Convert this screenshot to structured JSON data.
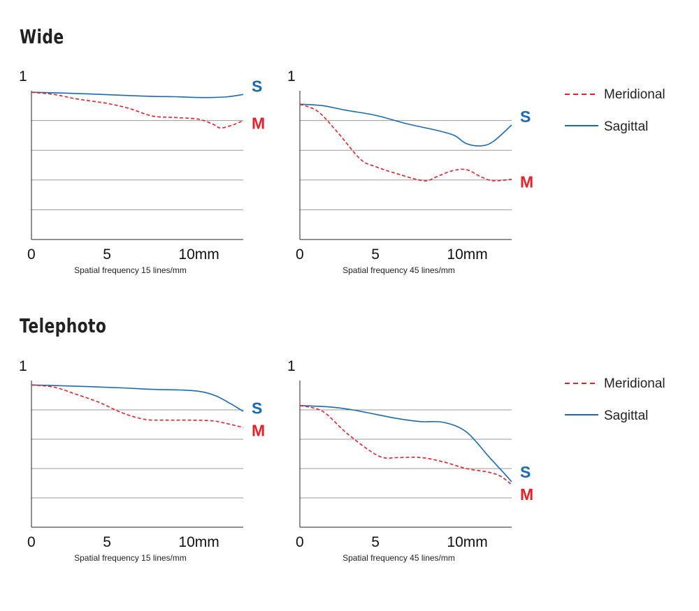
{
  "sections": [
    {
      "id": "wide",
      "title": "Wide"
    },
    {
      "id": "telephoto",
      "title": "Telephoto"
    }
  ],
  "legend": {
    "meridional": {
      "label": "Meridional",
      "color": "#e8202a",
      "style": "dashed"
    },
    "sagittal": {
      "label": "Sagittal",
      "color": "#1a6ab3",
      "style": "solid"
    }
  },
  "chart_data": [
    {
      "type": "line",
      "section": "Wide",
      "y_top_label": "1",
      "xlabel": "Spatial frequency 15 lines/mm",
      "xlim": [
        0,
        14
      ],
      "ylim": [
        0,
        1
      ],
      "x_ticks": [
        {
          "v": 0,
          "label": "0"
        },
        {
          "v": 5,
          "label": "5"
        },
        {
          "v": 10,
          "label": "10mm"
        }
      ],
      "y_gridlines": [
        0.2,
        0.4,
        0.6,
        0.8
      ],
      "series": [
        {
          "name": "Sagittal",
          "end_label": "S",
          "points": [
            [
              0,
              0.99
            ],
            [
              2,
              0.985
            ],
            [
              4,
              0.978
            ],
            [
              6,
              0.97
            ],
            [
              8,
              0.962
            ],
            [
              9.5,
              0.96
            ],
            [
              11,
              0.955
            ],
            [
              12,
              0.955
            ],
            [
              13,
              0.96
            ],
            [
              14,
              0.975
            ]
          ]
        },
        {
          "name": "Meridional",
          "end_label": "M",
          "points": [
            [
              0,
              0.99
            ],
            [
              1.5,
              0.975
            ],
            [
              3,
              0.945
            ],
            [
              5,
              0.915
            ],
            [
              6.5,
              0.88
            ],
            [
              8,
              0.83
            ],
            [
              9.5,
              0.82
            ],
            [
              11,
              0.81
            ],
            [
              12,
              0.775
            ],
            [
              12.5,
              0.75
            ],
            [
              13.3,
              0.77
            ],
            [
              14,
              0.8
            ]
          ]
        }
      ]
    },
    {
      "type": "line",
      "section": "Wide",
      "y_top_label": "1",
      "xlabel": "Spatial frequency 45 lines/mm",
      "xlim": [
        0,
        14
      ],
      "ylim": [
        0,
        1
      ],
      "x_ticks": [
        {
          "v": 0,
          "label": "0"
        },
        {
          "v": 5,
          "label": "5"
        },
        {
          "v": 10,
          "label": "10mm"
        }
      ],
      "y_gridlines": [
        0.2,
        0.4,
        0.6,
        0.8
      ],
      "series": [
        {
          "name": "Sagittal",
          "end_label": "S",
          "points": [
            [
              0,
              0.91
            ],
            [
              1.5,
              0.9
            ],
            [
              3,
              0.87
            ],
            [
              5,
              0.835
            ],
            [
              7,
              0.78
            ],
            [
              9,
              0.735
            ],
            [
              10.2,
              0.7
            ],
            [
              11,
              0.645
            ],
            [
              12,
              0.63
            ],
            [
              12.8,
              0.66
            ],
            [
              14,
              0.77
            ]
          ]
        },
        {
          "name": "Meridional",
          "end_label": "M",
          "points": [
            [
              0,
              0.91
            ],
            [
              1.2,
              0.86
            ],
            [
              2.5,
              0.72
            ],
            [
              4,
              0.54
            ],
            [
              5,
              0.49
            ],
            [
              6.5,
              0.44
            ],
            [
              8.2,
              0.395
            ],
            [
              9,
              0.42
            ],
            [
              10,
              0.46
            ],
            [
              11,
              0.47
            ],
            [
              12,
              0.42
            ],
            [
              12.8,
              0.395
            ],
            [
              14,
              0.405
            ]
          ]
        }
      ]
    },
    {
      "type": "line",
      "section": "Telephoto",
      "y_top_label": "1",
      "xlabel": "Spatial frequency 15 lines/mm",
      "xlim": [
        0,
        14
      ],
      "ylim": [
        0,
        1
      ],
      "x_ticks": [
        {
          "v": 0,
          "label": "0"
        },
        {
          "v": 5,
          "label": "5"
        },
        {
          "v": 10,
          "label": "10mm"
        }
      ],
      "y_gridlines": [
        0.2,
        0.4,
        0.6,
        0.8
      ],
      "series": [
        {
          "name": "Sagittal",
          "end_label": "S",
          "points": [
            [
              0,
              0.97
            ],
            [
              2,
              0.965
            ],
            [
              4,
              0.958
            ],
            [
              6,
              0.95
            ],
            [
              8,
              0.94
            ],
            [
              10,
              0.935
            ],
            [
              11.2,
              0.925
            ],
            [
              12.2,
              0.895
            ],
            [
              13.2,
              0.84
            ],
            [
              14,
              0.79
            ]
          ]
        },
        {
          "name": "Meridional",
          "end_label": "M",
          "points": [
            [
              0,
              0.97
            ],
            [
              1.5,
              0.955
            ],
            [
              3,
              0.905
            ],
            [
              4.5,
              0.85
            ],
            [
              6,
              0.78
            ],
            [
              7.5,
              0.735
            ],
            [
              9,
              0.73
            ],
            [
              10.5,
              0.73
            ],
            [
              12,
              0.725
            ],
            [
              13,
              0.705
            ],
            [
              14,
              0.68
            ]
          ]
        }
      ]
    },
    {
      "type": "line",
      "section": "Telephoto",
      "y_top_label": "1",
      "xlabel": "Spatial frequency 45 lines/mm",
      "xlim": [
        0,
        14
      ],
      "ylim": [
        0,
        1
      ],
      "x_ticks": [
        {
          "v": 0,
          "label": "0"
        },
        {
          "v": 5,
          "label": "5"
        },
        {
          "v": 10,
          "label": "10mm"
        }
      ],
      "y_gridlines": [
        0.2,
        0.4,
        0.6,
        0.8
      ],
      "series": [
        {
          "name": "Sagittal",
          "end_label": "S",
          "points": [
            [
              0,
              0.83
            ],
            [
              2,
              0.82
            ],
            [
              3.5,
              0.8
            ],
            [
              5,
              0.77
            ],
            [
              6.5,
              0.74
            ],
            [
              8,
              0.72
            ],
            [
              9.5,
              0.715
            ],
            [
              11,
              0.65
            ],
            [
              12.5,
              0.48
            ],
            [
              13.3,
              0.39
            ],
            [
              14,
              0.31
            ]
          ]
        },
        {
          "name": "Meridional",
          "end_label": "M",
          "points": [
            [
              0,
              0.83
            ],
            [
              1.5,
              0.79
            ],
            [
              3,
              0.65
            ],
            [
              4.5,
              0.53
            ],
            [
              5.5,
              0.475
            ],
            [
              6.5,
              0.475
            ],
            [
              8,
              0.475
            ],
            [
              9.5,
              0.445
            ],
            [
              11,
              0.4
            ],
            [
              12.5,
              0.375
            ],
            [
              13.3,
              0.345
            ],
            [
              14,
              0.29
            ]
          ]
        }
      ]
    }
  ]
}
